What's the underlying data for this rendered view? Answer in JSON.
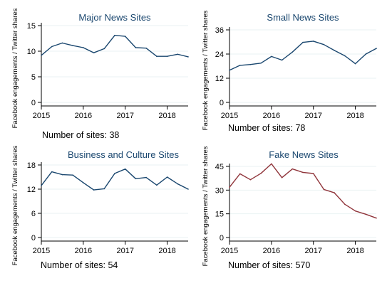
{
  "colors": {
    "title": "#1a476f",
    "series_default": "#1a476f",
    "series_fake": "#90353b",
    "grid": "#eaf2f3",
    "axis": "#000000"
  },
  "chart_data": [
    {
      "type": "line",
      "title": "Major News Sites",
      "ylabel": "Facebook engagements / Twitter shares",
      "xlabel": "",
      "caption": "Number of sites: 38",
      "xlim": [
        2015,
        2018.5
      ],
      "xticks": [
        2015,
        2016,
        2017,
        2018
      ],
      "ylim": [
        0,
        15
      ],
      "yticks": [
        0,
        5,
        10,
        15
      ],
      "grid": true,
      "color": "#1a476f",
      "x": [
        2015.0,
        2015.25,
        2015.5,
        2015.75,
        2016.0,
        2016.25,
        2016.5,
        2016.75,
        2017.0,
        2017.25,
        2017.5,
        2017.75,
        2018.0,
        2018.25,
        2018.5
      ],
      "values": [
        9.2,
        10.9,
        11.6,
        11.1,
        10.7,
        9.7,
        10.5,
        13.1,
        12.9,
        10.7,
        10.6,
        9.0,
        9.0,
        9.4,
        8.9
      ]
    },
    {
      "type": "line",
      "title": "Small News Sites",
      "ylabel": "Facebook engagements / Twitter shares",
      "xlabel": "",
      "caption": "Number of sites: 78",
      "xlim": [
        2015,
        2018.5
      ],
      "xticks": [
        2015,
        2016,
        2017,
        2018
      ],
      "ylim": [
        0,
        36
      ],
      "yticks": [
        0,
        12,
        24,
        36
      ],
      "grid": true,
      "color": "#1a476f",
      "x": [
        2015.0,
        2015.25,
        2015.5,
        2015.75,
        2016.0,
        2016.25,
        2016.5,
        2016.75,
        2017.0,
        2017.25,
        2017.5,
        2017.75,
        2018.0,
        2018.25,
        2018.5
      ],
      "values": [
        16.0,
        18.4,
        18.8,
        19.5,
        22.8,
        21.0,
        25.0,
        29.8,
        30.4,
        28.7,
        25.8,
        23.1,
        19.2,
        24.0,
        26.8
      ]
    },
    {
      "type": "line",
      "title": "Business and Culture Sites",
      "ylabel": "Facebook engagements / Twitter shares",
      "xlabel": "",
      "caption": "Number of sites: 54",
      "xlim": [
        2015,
        2018.5
      ],
      "xticks": [
        2015,
        2016,
        2017,
        2018
      ],
      "ylim": [
        0,
        18
      ],
      "yticks": [
        0,
        6,
        12,
        18
      ],
      "grid": true,
      "color": "#1a476f",
      "x": [
        2015.0,
        2015.25,
        2015.5,
        2015.75,
        2016.0,
        2016.25,
        2016.5,
        2016.75,
        2017.0,
        2017.25,
        2017.5,
        2017.75,
        2018.0,
        2018.25,
        2018.5
      ],
      "values": [
        12.9,
        16.3,
        15.6,
        15.5,
        13.6,
        11.8,
        12.1,
        15.9,
        17.0,
        14.6,
        14.9,
        13.0,
        15.0,
        13.3,
        12.0
      ]
    },
    {
      "type": "line",
      "title": "Fake News Sites",
      "ylabel": "Facebook engagements / Twitter shares",
      "xlabel": "",
      "caption": "Number of sites: 570",
      "xlim": [
        2015,
        2018.5
      ],
      "xticks": [
        2015,
        2016,
        2017,
        2018
      ],
      "ylim": [
        0,
        45
      ],
      "yticks": [
        0,
        15,
        30,
        45
      ],
      "grid": true,
      "color": "#90353b",
      "x": [
        2015.0,
        2015.25,
        2015.5,
        2015.75,
        2016.0,
        2016.25,
        2016.5,
        2016.75,
        2017.0,
        2017.25,
        2017.5,
        2017.75,
        2018.0,
        2018.25,
        2018.5
      ],
      "values": [
        31.8,
        40.3,
        36.6,
        40.6,
        46.6,
        37.9,
        43.4,
        41.2,
        40.5,
        30.4,
        28.3,
        21.0,
        16.8,
        14.7,
        12.3
      ]
    }
  ]
}
